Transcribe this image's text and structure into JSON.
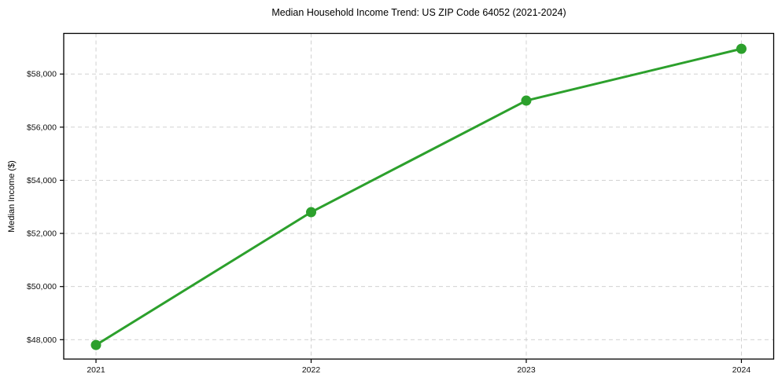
{
  "chart_data": {
    "type": "line",
    "title": "Median Household Income Trend: US ZIP Code 64052 (2021-2024)",
    "xlabel": "",
    "ylabel": "Median Income ($)",
    "x": [
      2021,
      2022,
      2023,
      2024
    ],
    "series": [
      {
        "name": "Median Household Income",
        "values": [
          47800,
          52800,
          57000,
          58950
        ],
        "color": "#2ca02c",
        "marker": "circle",
        "line_width": 3,
        "marker_radius": 6.5
      }
    ],
    "xlim": [
      2020.85,
      2024.15
    ],
    "ylim": [
      47270,
      59530
    ],
    "yticks": [
      48000,
      50000,
      52000,
      54000,
      56000,
      58000
    ],
    "ytick_labels": [
      "$48,000",
      "$50,000",
      "$52,000",
      "$54,000",
      "$56,000",
      "$58,000"
    ],
    "xticks": [
      2021,
      2022,
      2023,
      2024
    ],
    "xtick_labels": [
      "2021",
      "2022",
      "2023",
      "2024"
    ],
    "grid": "dashed",
    "grid_color": "#cccccc",
    "axes_color": "#000000",
    "tick_label_color": "#111111",
    "background": "#ffffff",
    "legend": "none"
  }
}
